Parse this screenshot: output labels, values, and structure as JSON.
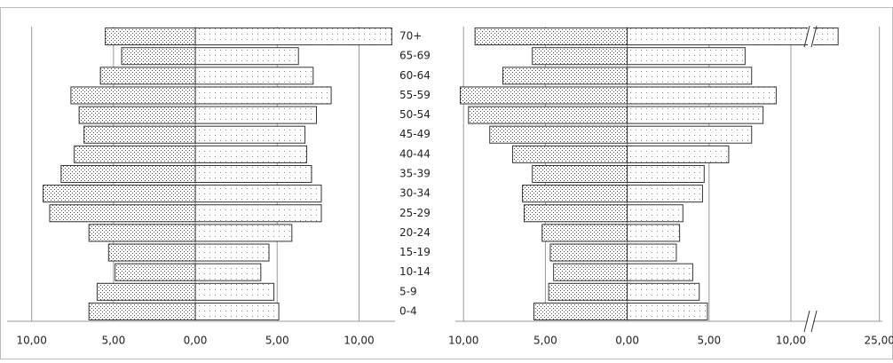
{
  "chart_data": [
    {
      "type": "pyramid",
      "categories": [
        "0-4",
        "5-9",
        "10-14",
        "15-19",
        "20-24",
        "25-29",
        "30-34",
        "35-39",
        "40-44",
        "45-49",
        "50-54",
        "55-59",
        "60-64",
        "65-69",
        "70+"
      ],
      "series": [
        {
          "color": "#444444",
          "values": [
            -6.5,
            -6.0,
            -4.9,
            -5.3,
            -6.5,
            -8.9,
            -9.3,
            -8.2,
            -7.4,
            -6.8,
            -7.1,
            -7.6,
            -5.8,
            -4.5,
            -5.5
          ]
        },
        {
          "color": "#888888",
          "values": [
            5.1,
            4.8,
            4.0,
            4.5,
            5.9,
            7.7,
            7.7,
            7.1,
            6.8,
            6.7,
            7.4,
            8.3,
            7.2,
            6.3,
            12.0
          ]
        }
      ],
      "xlim": [
        -11.5,
        12.2
      ],
      "xticks": [
        {
          "value": -10,
          "label": "10,00"
        },
        {
          "value": -5,
          "label": "5,00"
        },
        {
          "value": 0,
          "label": "0,00"
        },
        {
          "value": 5,
          "label": "5,00"
        },
        {
          "value": 10,
          "label": "10,00"
        }
      ],
      "grid": true
    },
    {
      "type": "pyramid",
      "series": [
        {
          "color": "#444444",
          "values": [
            -5.7,
            -4.8,
            -4.5,
            -4.7,
            -5.2,
            -6.3,
            -6.4,
            -5.8,
            -7.0,
            -8.4,
            -9.7,
            -10.2,
            -7.6,
            -5.8,
            -9.3
          ]
        },
        {
          "color": "#888888",
          "values": [
            4.9,
            4.4,
            4.0,
            3.0,
            3.2,
            3.4,
            4.6,
            4.7,
            6.2,
            7.6,
            8.3,
            9.1,
            7.6,
            7.2,
            18
          ]
        }
      ],
      "xlim": [
        -10.5,
        25.5
      ],
      "x_break": 10,
      "xticks": [
        {
          "value": -10,
          "label": "10,00"
        },
        {
          "value": -5,
          "label": "5,00"
        },
        {
          "value": 0,
          "label": "0,00"
        },
        {
          "value": 5,
          "label": "5,00"
        },
        {
          "value": 10,
          "label": "10,00"
        },
        {
          "value": 25,
          "label": "25,00"
        }
      ],
      "grid": true
    }
  ]
}
